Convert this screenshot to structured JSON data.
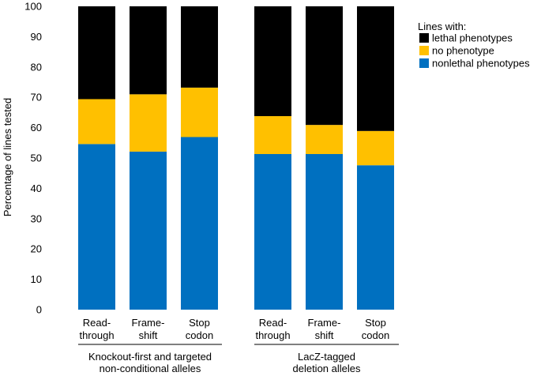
{
  "chart_data": {
    "type": "bar",
    "stacked": true,
    "ylabel": "Percentage of lines tested",
    "ylim": [
      0,
      100
    ],
    "yticks": [
      0,
      10,
      20,
      30,
      40,
      50,
      60,
      70,
      80,
      90,
      100
    ],
    "categories": [
      [
        "Read-",
        "through"
      ],
      [
        "Frame-",
        "shift"
      ],
      [
        "Stop",
        "codon"
      ],
      [
        "Read-",
        "through"
      ],
      [
        "Frame-",
        "shift"
      ],
      [
        "Stop",
        "codon"
      ]
    ],
    "groups": [
      {
        "label": [
          "Knockout-first and targeted",
          "non-conditional alleles"
        ],
        "indices": [
          0,
          1,
          2
        ]
      },
      {
        "label": [
          "LacZ-tagged",
          "deletion alleles"
        ],
        "indices": [
          3,
          4,
          5
        ]
      }
    ],
    "series": [
      {
        "name": "nonlethal phenotypes",
        "color": "#0070C0",
        "values": [
          54.6,
          52.1,
          56.9,
          51.3,
          51.3,
          47.6
        ]
      },
      {
        "name": "no phenotype",
        "color": "#FFC000",
        "values": [
          14.8,
          18.9,
          16.3,
          12.5,
          9.6,
          11.3
        ]
      },
      {
        "name": "lethal phenotypes",
        "color": "#000000",
        "values": [
          30.6,
          29.0,
          26.8,
          36.2,
          39.1,
          41.1
        ]
      }
    ],
    "legend": {
      "title": "Lines with:",
      "order": [
        "lethal phenotypes",
        "no phenotype",
        "nonlethal phenotypes"
      ],
      "position": "top-right"
    }
  }
}
